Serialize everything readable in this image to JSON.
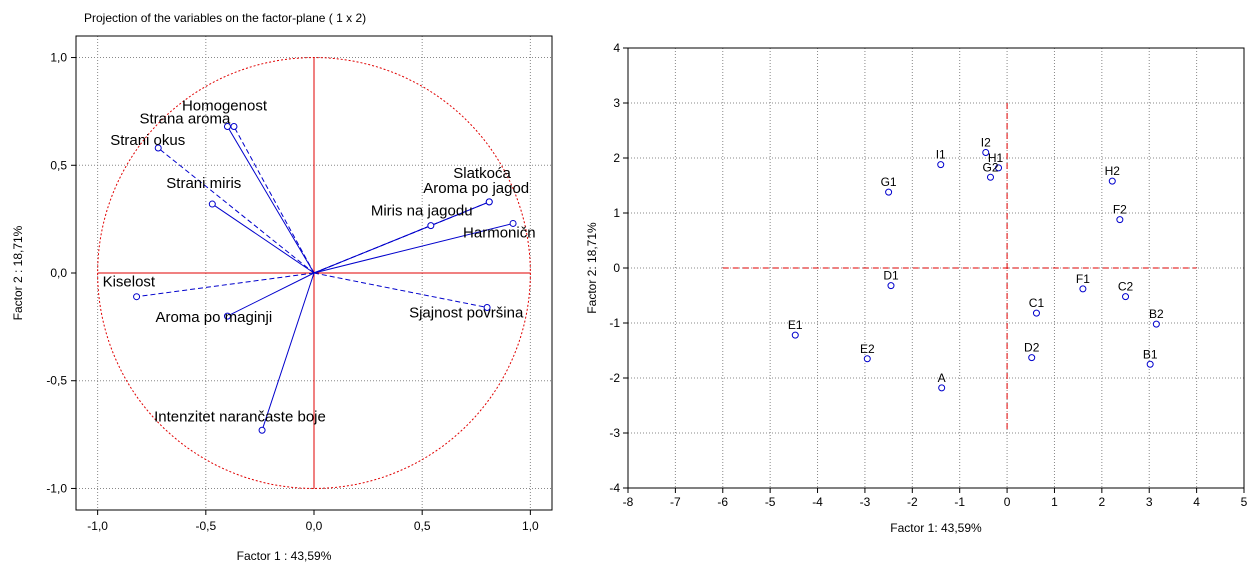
{
  "chart_data": [
    {
      "type": "scatter",
      "subtype": "variable-projection",
      "title": "Projection of the variables on the factor-plane (  1 x  2)",
      "xlabel": "Factor 1 : 43,59%",
      "ylabel": "Factor 2 : 18,71%",
      "xlim": [
        -1.1,
        1.1
      ],
      "ylim": [
        -1.1,
        1.1
      ],
      "x_ticks": [
        "-1,0",
        "-0,5",
        "0,0",
        "0,5",
        "1,0"
      ],
      "y_ticks": [
        "1,0",
        "0,5",
        "0,0",
        "-0,5",
        "-1,0"
      ],
      "grid": true,
      "unit_circle": true,
      "points": [
        {
          "label": "Homogenost",
          "x": -0.37,
          "y": 0.68
        },
        {
          "label": "Strana aroma",
          "x": -0.4,
          "y": 0.68
        },
        {
          "label": "Strani okus",
          "x": -0.72,
          "y": 0.58
        },
        {
          "label": "Strani miris",
          "x": -0.47,
          "y": 0.32
        },
        {
          "label": "Slatkoća",
          "x": 0.81,
          "y": 0.33
        },
        {
          "label": "Aroma po jagod",
          "x": 0.81,
          "y": 0.33
        },
        {
          "label": "Miris na jagodu",
          "x": 0.54,
          "y": 0.22
        },
        {
          "label": "Harmoničn",
          "x": 0.92,
          "y": 0.23
        },
        {
          "label": "Kiselost",
          "x": -0.82,
          "y": -0.11
        },
        {
          "label": "Aroma po maginji",
          "x": -0.4,
          "y": -0.2
        },
        {
          "label": "Sjajnost površina",
          "x": 0.8,
          "y": -0.16
        },
        {
          "label": "Intenzitet narančaste boje",
          "x": -0.24,
          "y": -0.73
        }
      ]
    },
    {
      "type": "scatter",
      "xlabel": "Factor 1: 43,59%",
      "ylabel": "Factor 2: 18,71%",
      "xlim": [
        -8,
        5
      ],
      "ylim": [
        -4,
        4
      ],
      "x_ticks": [
        "-8",
        "-7",
        "-6",
        "-5",
        "-4",
        "-3",
        "-2",
        "-1",
        "0",
        "1",
        "2",
        "3",
        "4",
        "5"
      ],
      "y_ticks": [
        "4",
        "3",
        "2",
        "1",
        "0",
        "-1",
        "-2",
        "-3",
        "-4"
      ],
      "grid": true,
      "reference_lines": {
        "x": 0,
        "y": 0
      },
      "points": [
        {
          "label": "I2",
          "x": -0.45,
          "y": 2.1
        },
        {
          "label": "H1",
          "x": -0.18,
          "y": 1.82
        },
        {
          "label": "G2",
          "x": -0.35,
          "y": 1.65
        },
        {
          "label": "I1",
          "x": -1.4,
          "y": 1.88
        },
        {
          "label": "G1",
          "x": -2.5,
          "y": 1.38
        },
        {
          "label": "H2",
          "x": 2.22,
          "y": 1.58
        },
        {
          "label": "F2",
          "x": 2.38,
          "y": 0.88
        },
        {
          "label": "D1",
          "x": -2.45,
          "y": -0.32
        },
        {
          "label": "F1",
          "x": 1.6,
          "y": -0.38
        },
        {
          "label": "C2",
          "x": 2.5,
          "y": -0.52
        },
        {
          "label": "C1",
          "x": 0.62,
          "y": -0.82
        },
        {
          "label": "B2",
          "x": 3.15,
          "y": -1.02
        },
        {
          "label": "E1",
          "x": -4.47,
          "y": -1.22
        },
        {
          "label": "E2",
          "x": -2.95,
          "y": -1.65
        },
        {
          "label": "D2",
          "x": 0.52,
          "y": -1.63
        },
        {
          "label": "B1",
          "x": 3.02,
          "y": -1.75
        },
        {
          "label": "A",
          "x": -1.38,
          "y": -2.18
        }
      ]
    }
  ],
  "colors": {
    "points": "#0000cc",
    "reference": "#e00000",
    "grid": "#888888"
  }
}
